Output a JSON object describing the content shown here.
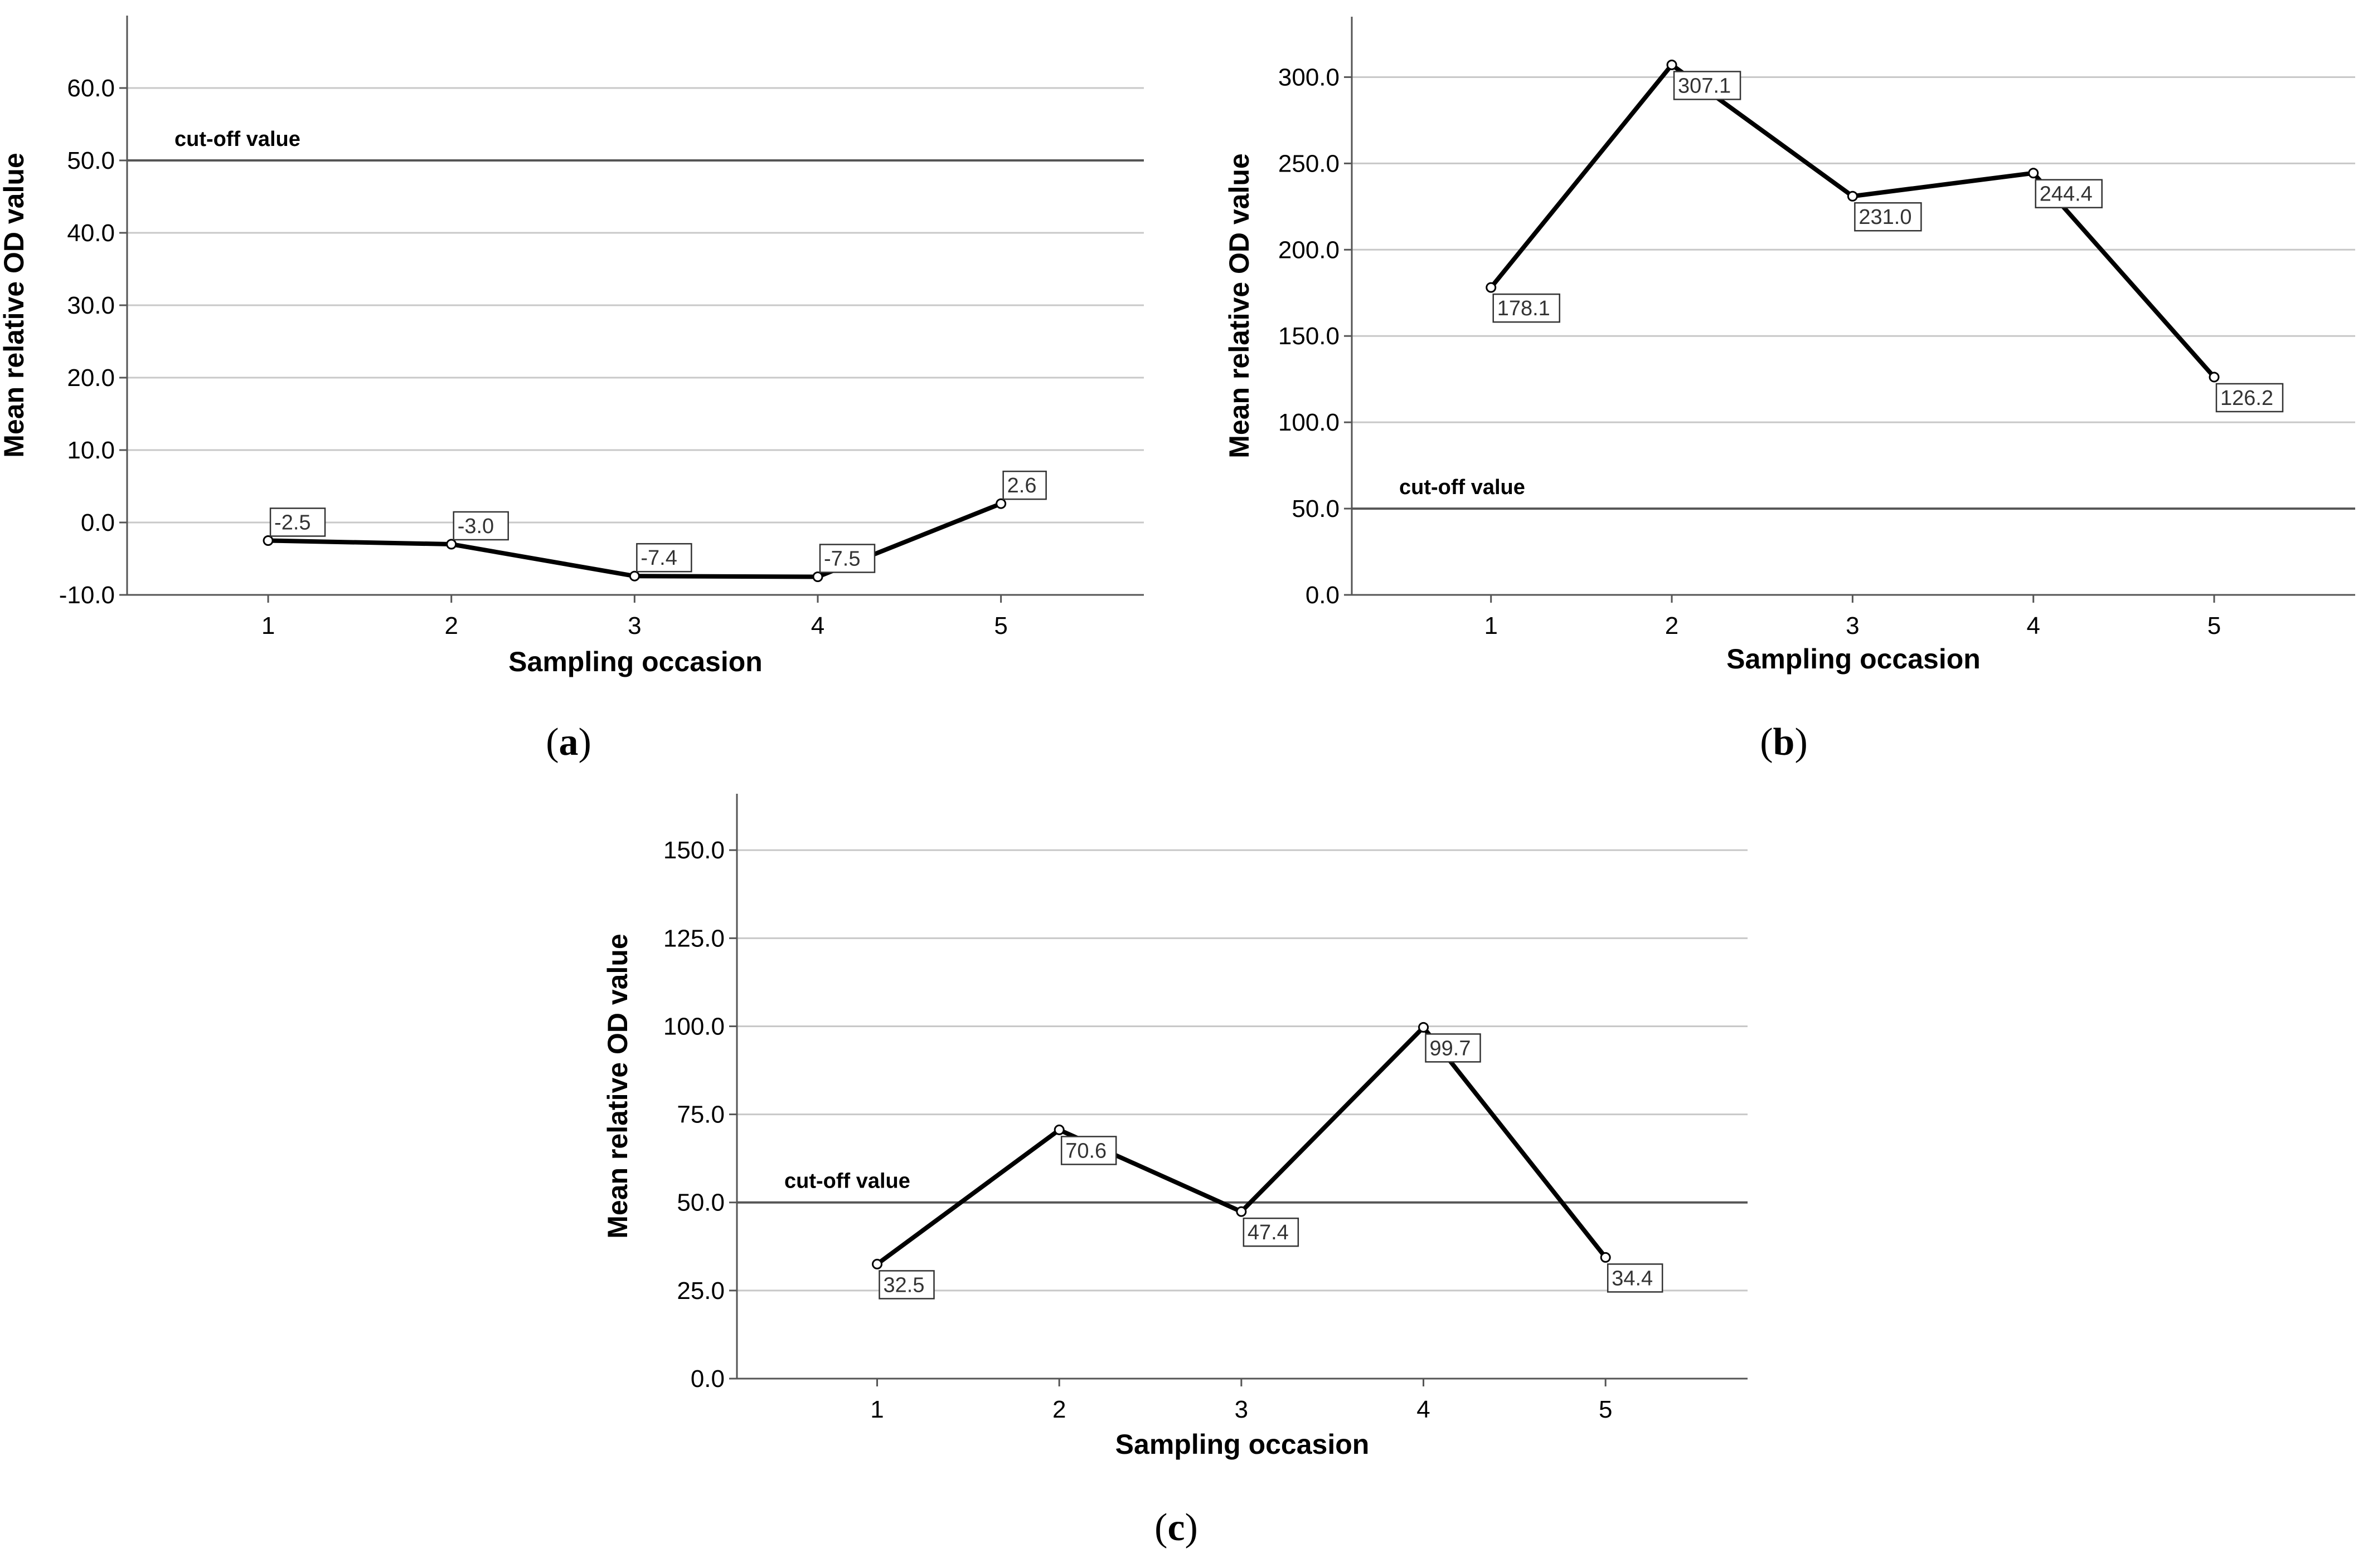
{
  "chart_data": [
    {
      "type": "line",
      "panel": "a",
      "caption_letter": "a",
      "xlabel": "Sampling occasion",
      "ylabel": "Mean relative OD value",
      "categories": [
        "1",
        "2",
        "3",
        "4",
        "5"
      ],
      "values": [
        -2.5,
        -3.0,
        -7.4,
        -7.5,
        2.6
      ],
      "data_labels": [
        "-2.5",
        "-3.0",
        "-7.4",
        "-7.5",
        "2.6"
      ],
      "label_placement": [
        "above",
        "above",
        "above",
        "above",
        "above"
      ],
      "ylim": [
        -10,
        70
      ],
      "yticks": [
        -10,
        0,
        10,
        20,
        30,
        40,
        50,
        60
      ],
      "ytick_labels": [
        "-10.0",
        "0.0",
        "10.0",
        "20.0",
        "30.0",
        "40.0",
        "50.0",
        "60.0"
      ],
      "reference_line": {
        "value": 50,
        "label": "cut-off value"
      },
      "grid": true
    },
    {
      "type": "line",
      "panel": "b",
      "caption_letter": "b",
      "xlabel": "Sampling occasion",
      "ylabel": "Mean relative OD value",
      "categories": [
        "1",
        "2",
        "3",
        "4",
        "5"
      ],
      "values": [
        178.1,
        307.1,
        231.0,
        244.4,
        126.2
      ],
      "data_labels": [
        "178.1",
        "307.1",
        "231.0",
        "244.4",
        "126.2"
      ],
      "label_placement": [
        "below",
        "below",
        "below",
        "below",
        "below"
      ],
      "ylim": [
        0,
        335
      ],
      "yticks": [
        0,
        50,
        100,
        150,
        200,
        250,
        300
      ],
      "ytick_labels": [
        "0.0",
        "50.0",
        "100.0",
        "150.0",
        "200.0",
        "250.0",
        "300.0"
      ],
      "reference_line": {
        "value": 50,
        "label": "cut-off value"
      },
      "grid": true
    },
    {
      "type": "line",
      "panel": "c",
      "caption_letter": "c",
      "xlabel": "Sampling occasion",
      "ylabel": "Mean relative OD value",
      "categories": [
        "1",
        "2",
        "3",
        "4",
        "5"
      ],
      "values": [
        32.5,
        70.6,
        47.4,
        99.7,
        34.4
      ],
      "data_labels": [
        "32.5",
        "70.6",
        "47.4",
        "99.7",
        "34.4"
      ],
      "label_placement": [
        "below",
        "below",
        "below",
        "below",
        "below"
      ],
      "ylim": [
        0,
        166
      ],
      "yticks": [
        0,
        25,
        50,
        75,
        100,
        125,
        150
      ],
      "ytick_labels": [
        "0.0",
        "25.0",
        "50.0",
        "75.0",
        "100.0",
        "125.0",
        "150.0"
      ],
      "reference_line": {
        "value": 50,
        "label": "cut-off value"
      },
      "grid": true
    }
  ]
}
